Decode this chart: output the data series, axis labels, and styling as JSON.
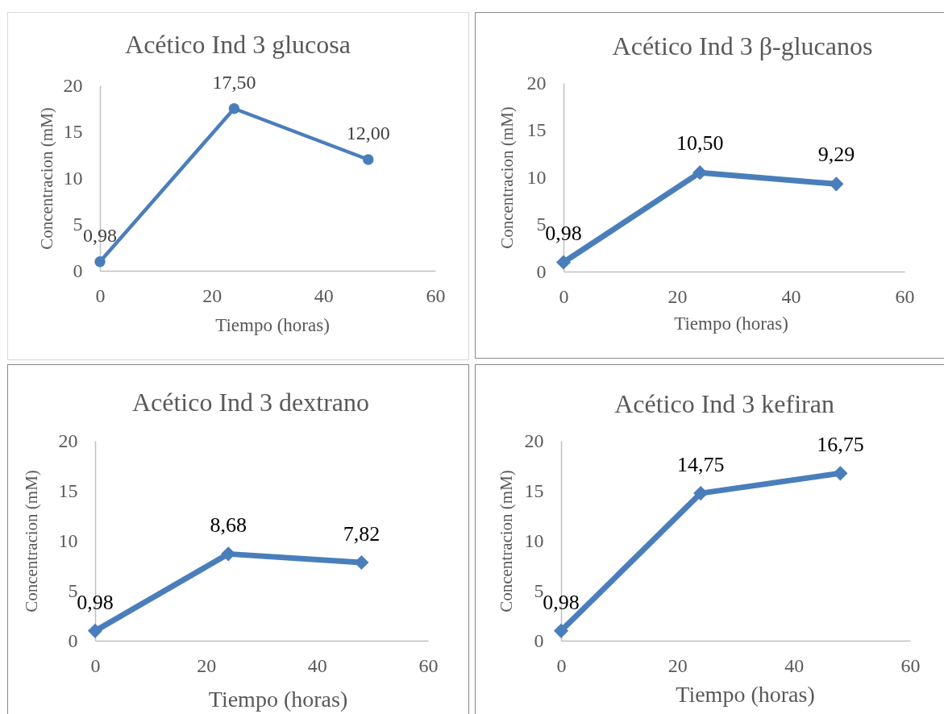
{
  "chart_data": [
    {
      "type": "line",
      "title": "Acético Ind 3 glucosa",
      "xlabel": "Tiempo (horas)",
      "ylabel": "Concentracion (mM)",
      "x": [
        0,
        24,
        48
      ],
      "values": [
        0.98,
        17.5,
        12.0
      ],
      "value_labels": [
        "0,98",
        "17,50",
        "12,00"
      ],
      "color": "#4a7ebb",
      "marker": "circle",
      "xlim": [
        0,
        60
      ],
      "xticks": [
        0,
        20,
        40,
        60
      ],
      "ylim": [
        0,
        20
      ],
      "yticks": [
        0,
        5,
        10,
        15,
        20
      ]
    },
    {
      "type": "line",
      "title": "Acético Ind 3 β-glucanos",
      "xlabel": "Tiempo (horas)",
      "ylabel": "Concentracion (mM)",
      "x": [
        0,
        24,
        48
      ],
      "values": [
        0.98,
        10.5,
        9.29
      ],
      "value_labels": [
        "0,98",
        "10,50",
        "9,29"
      ],
      "color": "#4a7ebb",
      "marker": "diamond",
      "xlim": [
        0,
        60
      ],
      "xticks": [
        0,
        20,
        40,
        60
      ],
      "ylim": [
        0,
        20
      ],
      "yticks": [
        0,
        5,
        10,
        15,
        20
      ]
    },
    {
      "type": "line",
      "title": "Acético Ind 3 dextrano",
      "xlabel": "Tiempo (horas)",
      "ylabel": "Concentracion (mM)",
      "x": [
        0,
        24,
        48
      ],
      "values": [
        0.98,
        8.68,
        7.82
      ],
      "value_labels": [
        "0,98",
        "8,68",
        "7,82"
      ],
      "color": "#4a7ebb",
      "marker": "diamond",
      "xlim": [
        0,
        60
      ],
      "xticks": [
        0,
        20,
        40,
        60
      ],
      "ylim": [
        0,
        20
      ],
      "yticks": [
        0,
        5,
        10,
        15,
        20
      ]
    },
    {
      "type": "line",
      "title": "Acético Ind 3 kefiran",
      "xlabel": "Tiempo (horas)",
      "ylabel": "Concentracion (mM)",
      "x": [
        0,
        24,
        48
      ],
      "values": [
        0.98,
        14.75,
        16.75
      ],
      "value_labels": [
        "0,98",
        "14,75",
        "16,75"
      ],
      "color": "#4a7ebb",
      "marker": "diamond",
      "xlim": [
        0,
        60
      ],
      "xticks": [
        0,
        20,
        40,
        60
      ],
      "ylim": [
        0,
        20
      ],
      "yticks": [
        0,
        5,
        10,
        15,
        20
      ]
    }
  ]
}
